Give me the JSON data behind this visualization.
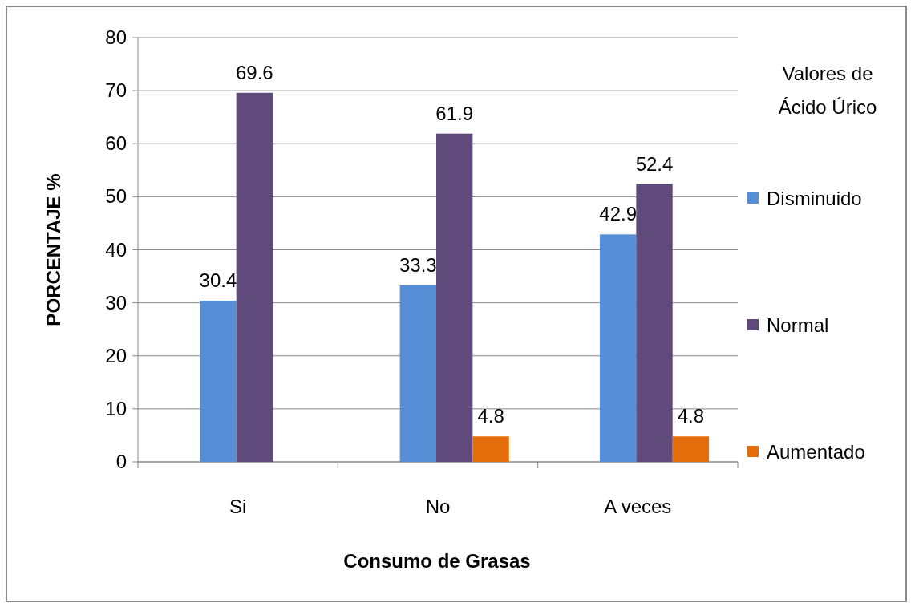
{
  "chart_data": {
    "type": "bar",
    "xlabel": "Consumo de Grasas",
    "ylabel": "PORCENTAJE %",
    "legend_title": "Valores de Ácido Úrico",
    "categories": [
      "Si",
      "No",
      "A veces"
    ],
    "series": [
      {
        "name": "Disminuido",
        "color": "#558ed5",
        "values": [
          30.4,
          33.3,
          42.9
        ]
      },
      {
        "name": "Normal",
        "color": "#604a7b",
        "values": [
          69.6,
          61.9,
          52.4
        ]
      },
      {
        "name": "Aumentado",
        "color": "#e46c0a",
        "values": [
          null,
          4.8,
          4.8
        ]
      }
    ],
    "ylim": [
      0,
      80
    ],
    "yticks": [
      0,
      10,
      20,
      30,
      40,
      50,
      60,
      70,
      80
    ],
    "grid": "y",
    "legend": "right",
    "data_labels": true
  }
}
